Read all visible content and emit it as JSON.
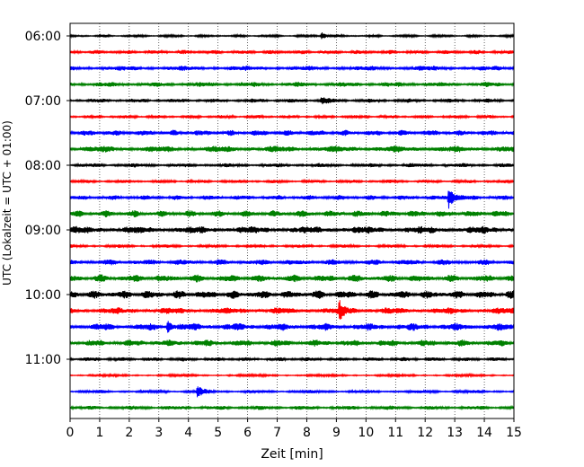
{
  "chart_data": {
    "type": "line",
    "title": "",
    "xlabel": "Zeit  [min]",
    "ylabel": "UTC (Lokalzeit = UTC + 01:00)",
    "xlim": [
      0,
      15
    ],
    "x_ticks": [
      0,
      1,
      2,
      3,
      4,
      5,
      6,
      7,
      8,
      9,
      10,
      11,
      12,
      13,
      14,
      15
    ],
    "x_tick_labels": [
      "0",
      "1",
      "2",
      "3",
      "4",
      "5",
      "6",
      "7",
      "8",
      "9",
      "10",
      "11",
      "12",
      "13",
      "14",
      "15"
    ],
    "y_tick_labels": [
      "06:00",
      "07:00",
      "08:00",
      "09:00",
      "10:00",
      "11:00"
    ],
    "grid": "vertical dotted",
    "colors": [
      "#000000",
      "#ff0000",
      "#0000ff",
      "#008000"
    ],
    "series": [
      {
        "start": "06:00",
        "color": "#000000",
        "amplitude": 1.5,
        "events": [
          {
            "x": 8.5,
            "amp": 4
          }
        ]
      },
      {
        "start": "06:15",
        "color": "#ff0000",
        "amplitude": 2.5,
        "events": []
      },
      {
        "start": "06:30",
        "color": "#0000ff",
        "amplitude": 3,
        "events": []
      },
      {
        "start": "06:45",
        "color": "#008000",
        "amplitude": 3,
        "events": []
      },
      {
        "start": "07:00",
        "color": "#000000",
        "amplitude": 2.5,
        "events": [
          {
            "x": 8.5,
            "amp": 4
          }
        ]
      },
      {
        "start": "07:15",
        "color": "#ff0000",
        "amplitude": 2,
        "events": []
      },
      {
        "start": "07:30",
        "color": "#0000ff",
        "amplitude": 3.5,
        "events": []
      },
      {
        "start": "07:45",
        "color": "#008000",
        "amplitude": 4,
        "events": []
      },
      {
        "start": "08:00",
        "color": "#000000",
        "amplitude": 2.5,
        "events": []
      },
      {
        "start": "08:15",
        "color": "#ff0000",
        "amplitude": 2,
        "events": []
      },
      {
        "start": "08:30",
        "color": "#0000ff",
        "amplitude": 3,
        "events": [
          {
            "x": 12.8,
            "amp": 12
          }
        ]
      },
      {
        "start": "08:45",
        "color": "#008000",
        "amplitude": 4,
        "events": []
      },
      {
        "start": "09:00",
        "color": "#000000",
        "amplitude": 4.5,
        "events": []
      },
      {
        "start": "09:15",
        "color": "#ff0000",
        "amplitude": 2,
        "events": []
      },
      {
        "start": "09:30",
        "color": "#0000ff",
        "amplitude": 3.5,
        "events": []
      },
      {
        "start": "09:45",
        "color": "#008000",
        "amplitude": 4.5,
        "events": []
      },
      {
        "start": "10:00",
        "color": "#000000",
        "amplitude": 5,
        "events": []
      },
      {
        "start": "10:15",
        "color": "#ff0000",
        "amplitude": 4,
        "events": [
          {
            "x": 9.1,
            "amp": 9
          }
        ]
      },
      {
        "start": "10:30",
        "color": "#0000ff",
        "amplitude": 4.5,
        "events": [
          {
            "x": 3.3,
            "amp": 6
          }
        ]
      },
      {
        "start": "10:45",
        "color": "#008000",
        "amplitude": 4,
        "events": []
      },
      {
        "start": "11:00",
        "color": "#000000",
        "amplitude": 2.5,
        "events": []
      },
      {
        "start": "11:15",
        "color": "#ff0000",
        "amplitude": 1.5,
        "events": []
      },
      {
        "start": "11:30",
        "color": "#0000ff",
        "amplitude": 2,
        "events": [
          {
            "x": 4.3,
            "amp": 6
          }
        ]
      },
      {
        "start": "11:45",
        "color": "#008000",
        "amplitude": 2.5,
        "events": []
      }
    ]
  }
}
